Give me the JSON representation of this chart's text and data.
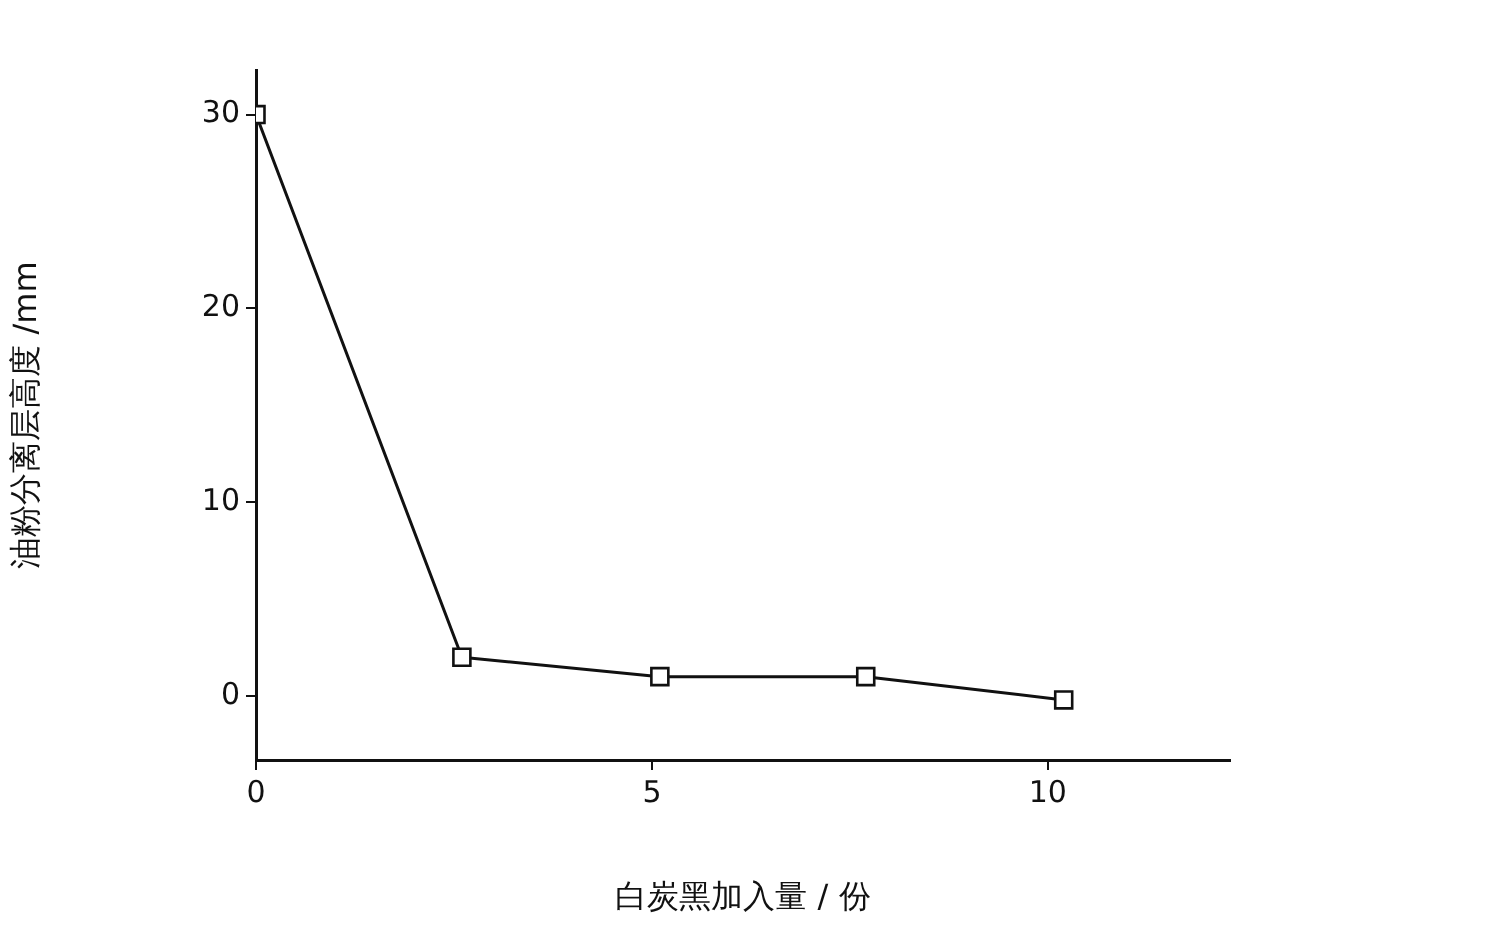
{
  "chart_data": {
    "type": "line",
    "xlabel": "白炭黑加入量 / 份",
    "ylabel": "油粉分离层高度 /mm",
    "x": [
      0,
      2.6,
      5.1,
      7.7,
      10.2
    ],
    "series": [
      {
        "color": "#111111",
        "values": [
          30,
          2,
          1,
          1,
          -0.2
        ]
      }
    ],
    "xlim": [
      0,
      12.3
    ],
    "xticks": [
      0,
      5,
      10
    ],
    "ylim": [
      -3.3,
      32.3
    ],
    "yticks": [
      0,
      10,
      20,
      30
    ],
    "grid": false,
    "legend": false,
    "marker": "square",
    "line_style": "solid"
  }
}
